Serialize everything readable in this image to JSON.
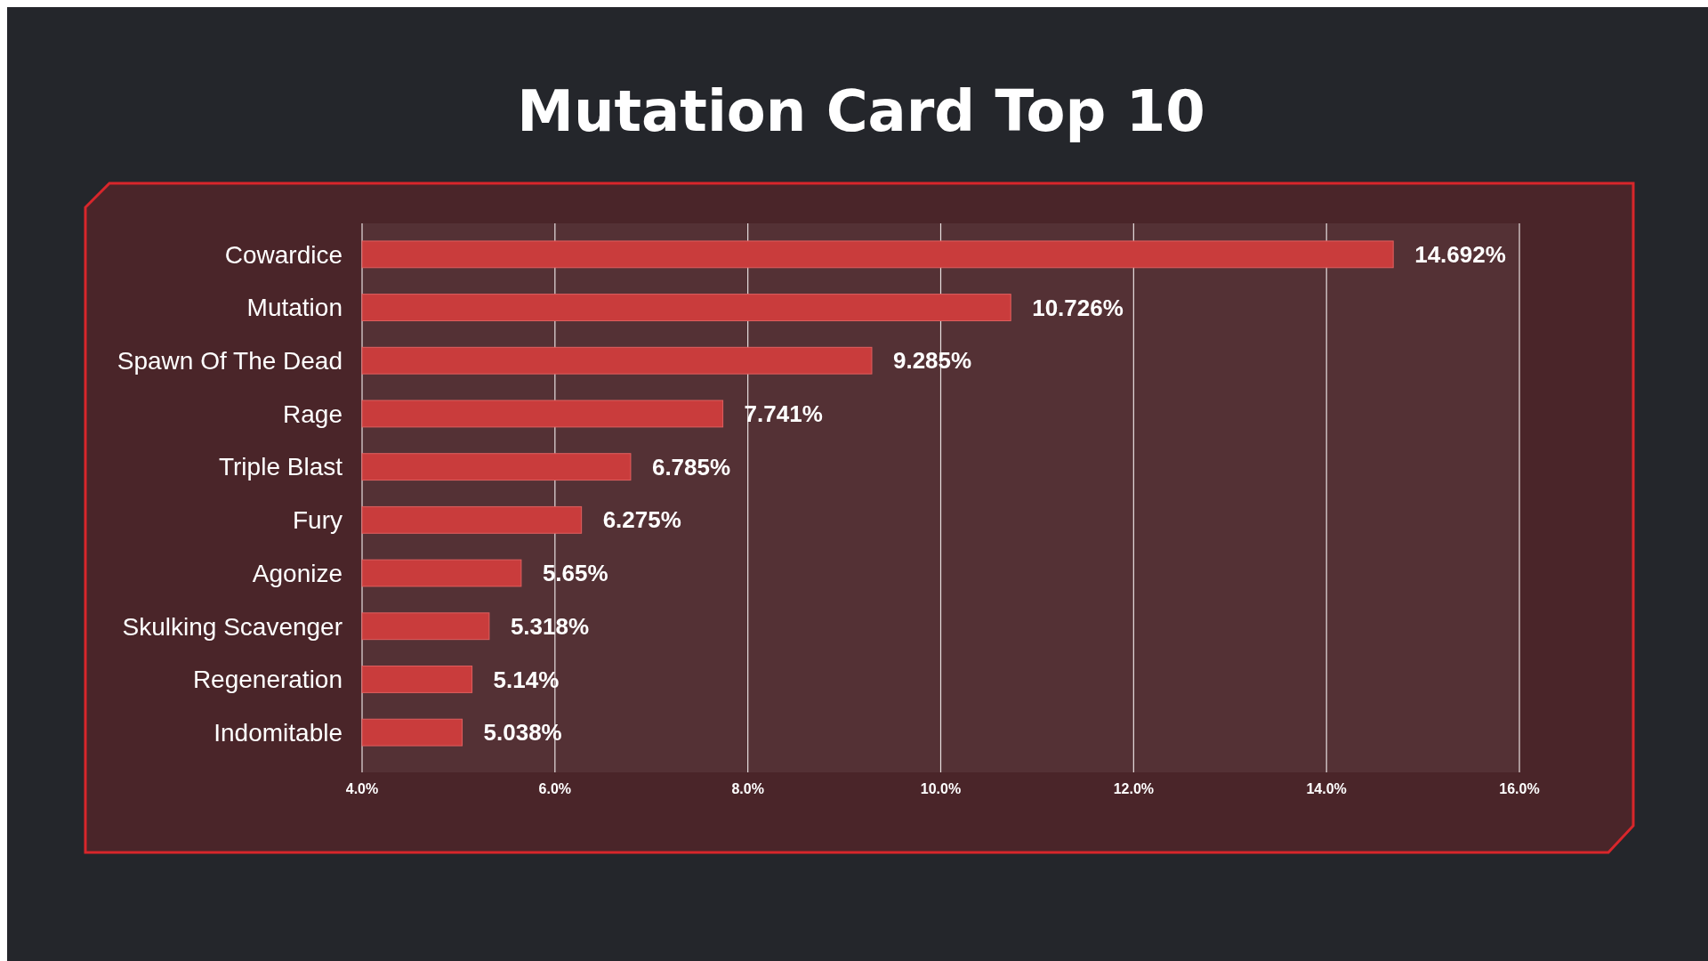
{
  "chart_data": {
    "type": "bar",
    "orientation": "horizontal",
    "title": "Mutation Card Top 10",
    "categories": [
      "Cowardice",
      "Mutation",
      "Spawn Of The Dead",
      "Rage",
      "Triple Blast",
      "Fury",
      "Agonize",
      "Skulking Scavenger",
      "Regeneration",
      "Indomitable"
    ],
    "values": [
      14.692,
      10.726,
      9.285,
      7.741,
      6.785,
      6.275,
      5.65,
      5.318,
      5.14,
      5.038
    ],
    "value_labels": [
      "14.692%",
      "10.726%",
      "9.285%",
      "7.741%",
      "6.785%",
      "6.275%",
      "5.65%",
      "5.318%",
      "5.14%",
      "5.038%"
    ],
    "color": "#c93c3c",
    "xlim": [
      4,
      16
    ],
    "xticks": [
      {
        "value": 4,
        "label": "4.0%"
      },
      {
        "value": 6,
        "label": "6.0%"
      },
      {
        "value": 8,
        "label": "8.0%"
      },
      {
        "value": 10,
        "label": "10.0%"
      },
      {
        "value": 12,
        "label": "12.0%"
      },
      {
        "value": 14,
        "label": "14.0%"
      },
      {
        "value": 16,
        "label": "16.0%"
      }
    ],
    "grid": "x"
  }
}
